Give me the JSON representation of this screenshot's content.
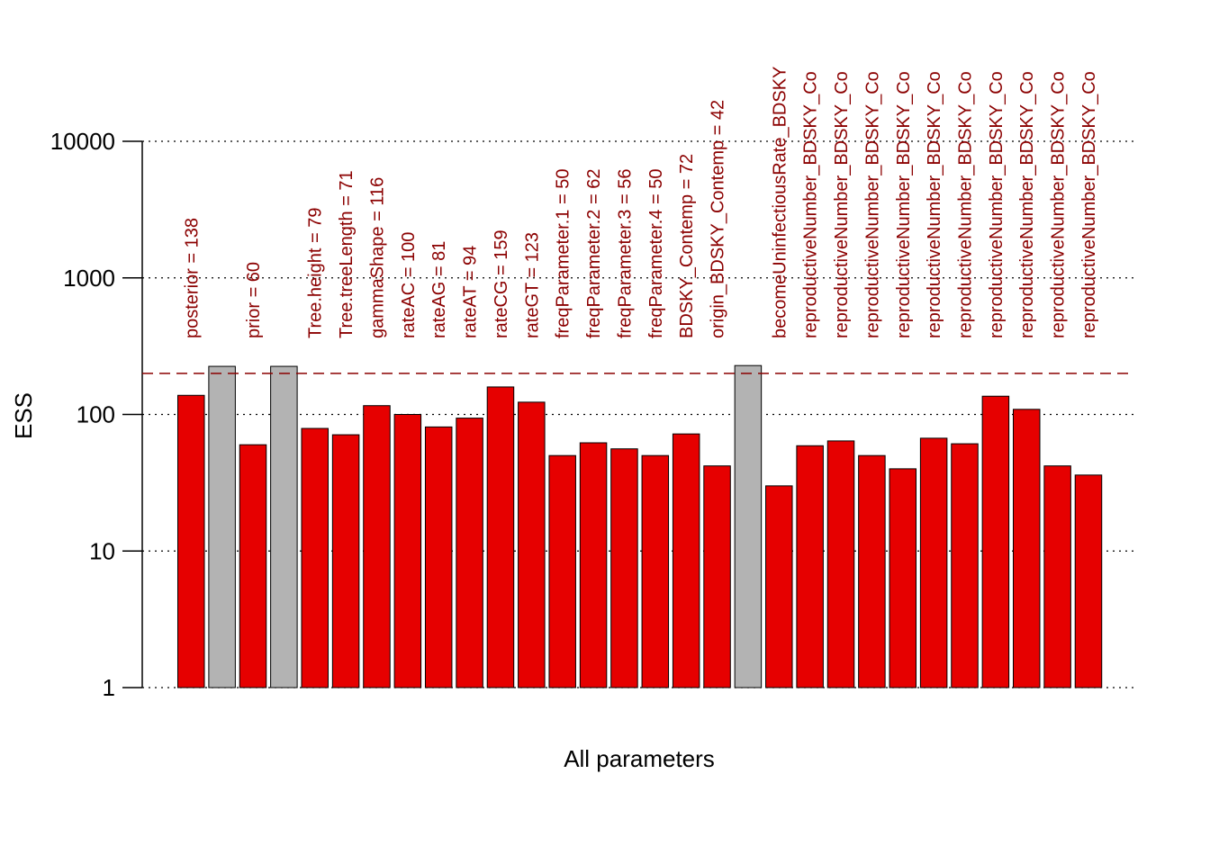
{
  "chart_data": {
    "type": "bar",
    "xlabel": "All parameters",
    "ylabel": "ESS",
    "y_scale": "log",
    "ylim": [
      1,
      10000
    ],
    "y_ticks": [
      1,
      10,
      100,
      1000,
      10000
    ],
    "y_tick_labels": [
      "1",
      "10",
      "100",
      "1000",
      "10000"
    ],
    "grid": "horizontal dotted at ticks",
    "threshold": 200,
    "colors": {
      "low_ess_bar": "#e60000",
      "ok_ess_bar": "#b3b3b3",
      "bar_outline": "#000000",
      "label_text": "#8b0000",
      "threshold_line": "#8b0000",
      "grid": "#000000"
    },
    "bars": [
      {
        "value": 138,
        "label": "posterior = 138",
        "highlight": true
      },
      {
        "value": 225,
        "label": "",
        "highlight": false
      },
      {
        "value": 60,
        "label": "prior = 60",
        "highlight": true
      },
      {
        "value": 225,
        "label": "",
        "highlight": false
      },
      {
        "value": 79,
        "label": "Tree.height = 79",
        "highlight": true
      },
      {
        "value": 71,
        "label": "Tree.treeLength = 71",
        "highlight": true
      },
      {
        "value": 116,
        "label": "gammaShape = 116",
        "highlight": true
      },
      {
        "value": 100,
        "label": "rateAC = 100",
        "highlight": true
      },
      {
        "value": 81,
        "label": "rateAG = 81",
        "highlight": true
      },
      {
        "value": 94,
        "label": "rateAT = 94",
        "highlight": true
      },
      {
        "value": 159,
        "label": "rateCG = 159",
        "highlight": true
      },
      {
        "value": 123,
        "label": "rateGT = 123",
        "highlight": true
      },
      {
        "value": 50,
        "label": "freqParameter.1 = 50",
        "highlight": true
      },
      {
        "value": 62,
        "label": "freqParameter.2 = 62",
        "highlight": true
      },
      {
        "value": 56,
        "label": "freqParameter.3 = 56",
        "highlight": true
      },
      {
        "value": 50,
        "label": "freqParameter.4 = 50",
        "highlight": true
      },
      {
        "value": 72,
        "label": "BDSKY_Contemp = 72",
        "highlight": true
      },
      {
        "value": 42,
        "label": "origin_BDSKY_Contemp = 42",
        "highlight": true
      },
      {
        "value": 228,
        "label": "",
        "highlight": false
      },
      {
        "value": 30,
        "label": "becomeUninfectiousRate_BDSKY",
        "highlight": true
      },
      {
        "value": 59,
        "label": "reproductiveNumber_BDSKY_Co",
        "highlight": true
      },
      {
        "value": 64,
        "label": "reproductiveNumber_BDSKY_Co",
        "highlight": true
      },
      {
        "value": 50,
        "label": "reproductiveNumber_BDSKY_Co",
        "highlight": true
      },
      {
        "value": 40,
        "label": "reproductiveNumber_BDSKY_Co",
        "highlight": true
      },
      {
        "value": 67,
        "label": "reproductiveNumber_BDSKY_Co",
        "highlight": true
      },
      {
        "value": 61,
        "label": "reproductiveNumber_BDSKY_Co",
        "highlight": true
      },
      {
        "value": 136,
        "label": "reproductiveNumber_BDSKY_Co",
        "highlight": true
      },
      {
        "value": 109,
        "label": "reproductiveNumber_BDSKY_Co",
        "highlight": true
      },
      {
        "value": 42,
        "label": "reproductiveNumber_BDSKY_Co",
        "highlight": true
      },
      {
        "value": 36,
        "label": "reproductiveNumber_BDSKY_Co",
        "highlight": true
      }
    ]
  }
}
